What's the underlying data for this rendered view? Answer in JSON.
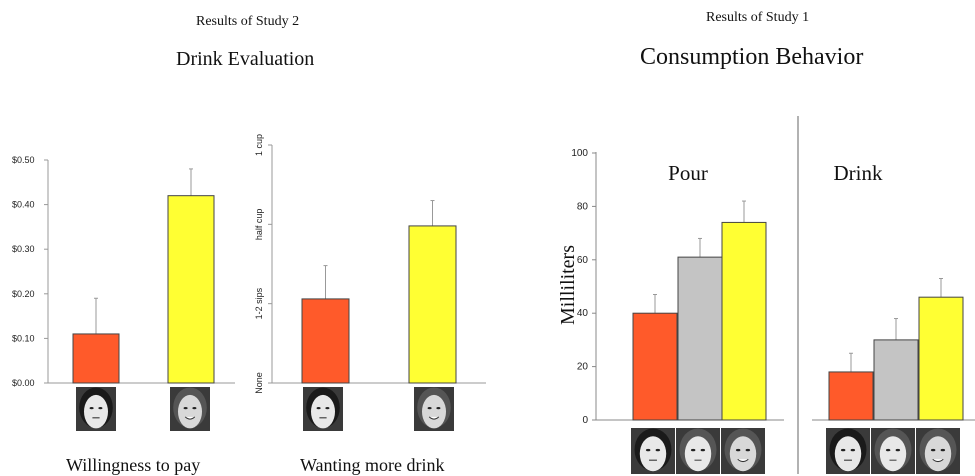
{
  "study2": {
    "header": "Results of Study 2",
    "title": "Drink Evaluation",
    "left_label": "Willingness to pay",
    "right_label": "Wanting more drink"
  },
  "study1": {
    "header": "Results of Study 1",
    "title": "Consumption Behavior",
    "ylabel": "Milliliters",
    "panel_pour": "Pour",
    "panel_drink": "Drink"
  },
  "colors": {
    "orange": "#ff5a2a",
    "gray": "#c4c4c4",
    "yellow": "#ffff33"
  },
  "chart_data": [
    {
      "type": "bar",
      "ylim": [
        0,
        0.5
      ],
      "yticks": [
        "$0.00",
        "$0.10",
        "$0.20",
        "$0.30",
        "$0.40",
        "$0.50"
      ],
      "categories": [
        "face-1",
        "face-2"
      ],
      "values": [
        0.11,
        0.42
      ],
      "errors": [
        0.08,
        0.06
      ],
      "xlabel": "Willingness to pay"
    },
    {
      "type": "bar",
      "ylim": [
        0,
        3
      ],
      "yticks": [
        "None",
        "1-2 sips",
        "half cup",
        "1 cup"
      ],
      "categories": [
        "face-1",
        "face-2"
      ],
      "values": [
        1.06,
        1.98
      ],
      "errors": [
        0.42,
        0.32
      ],
      "xlabel": "Wanting more drink"
    },
    {
      "type": "bar",
      "ylim": [
        0,
        100
      ],
      "yticks": [
        "0",
        "20",
        "40",
        "60",
        "80",
        "100"
      ],
      "ylabel": "Milliliters",
      "categories": [
        "face-1",
        "face-2",
        "face-3"
      ],
      "values": [
        40,
        61,
        74
      ],
      "errors": [
        7,
        7,
        8
      ],
      "panel": "Pour"
    },
    {
      "type": "bar",
      "ylim": [
        0,
        100
      ],
      "categories": [
        "face-1",
        "face-2",
        "face-3"
      ],
      "values": [
        18,
        30,
        46
      ],
      "errors": [
        7,
        8,
        7
      ],
      "panel": "Drink"
    }
  ]
}
